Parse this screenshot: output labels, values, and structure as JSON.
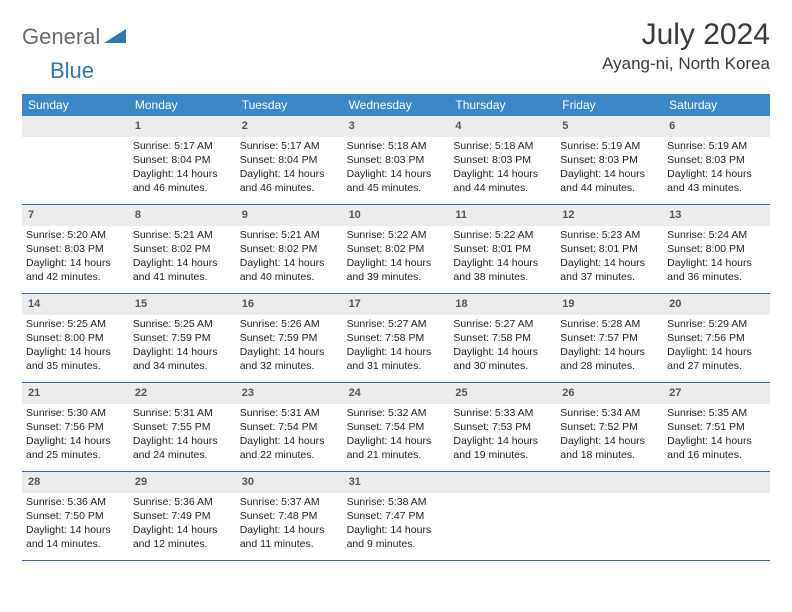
{
  "brand": {
    "general": "General",
    "blue": "Blue"
  },
  "title": {
    "month_year": "July 2024",
    "location": "Ayang-ni, North Korea"
  },
  "colors": {
    "header_bg": "#3b87c8",
    "header_text": "#ffffff",
    "date_bg": "#ececec",
    "date_text": "#555555",
    "body_text": "#222222",
    "rule": "#3b6fa0",
    "logo_gray": "#6a6a6a",
    "logo_blue": "#2e77b3"
  },
  "day_names": [
    "Sunday",
    "Monday",
    "Tuesday",
    "Wednesday",
    "Thursday",
    "Friday",
    "Saturday"
  ],
  "weeks": [
    [
      {
        "date": "",
        "lines": []
      },
      {
        "date": "1",
        "lines": [
          "Sunrise: 5:17 AM",
          "Sunset: 8:04 PM",
          "Daylight: 14 hours and 46 minutes."
        ]
      },
      {
        "date": "2",
        "lines": [
          "Sunrise: 5:17 AM",
          "Sunset: 8:04 PM",
          "Daylight: 14 hours and 46 minutes."
        ]
      },
      {
        "date": "3",
        "lines": [
          "Sunrise: 5:18 AM",
          "Sunset: 8:03 PM",
          "Daylight: 14 hours and 45 minutes."
        ]
      },
      {
        "date": "4",
        "lines": [
          "Sunrise: 5:18 AM",
          "Sunset: 8:03 PM",
          "Daylight: 14 hours and 44 minutes."
        ]
      },
      {
        "date": "5",
        "lines": [
          "Sunrise: 5:19 AM",
          "Sunset: 8:03 PM",
          "Daylight: 14 hours and 44 minutes."
        ]
      },
      {
        "date": "6",
        "lines": [
          "Sunrise: 5:19 AM",
          "Sunset: 8:03 PM",
          "Daylight: 14 hours and 43 minutes."
        ]
      }
    ],
    [
      {
        "date": "7",
        "lines": [
          "Sunrise: 5:20 AM",
          "Sunset: 8:03 PM",
          "Daylight: 14 hours and 42 minutes."
        ]
      },
      {
        "date": "8",
        "lines": [
          "Sunrise: 5:21 AM",
          "Sunset: 8:02 PM",
          "Daylight: 14 hours and 41 minutes."
        ]
      },
      {
        "date": "9",
        "lines": [
          "Sunrise: 5:21 AM",
          "Sunset: 8:02 PM",
          "Daylight: 14 hours and 40 minutes."
        ]
      },
      {
        "date": "10",
        "lines": [
          "Sunrise: 5:22 AM",
          "Sunset: 8:02 PM",
          "Daylight: 14 hours and 39 minutes."
        ]
      },
      {
        "date": "11",
        "lines": [
          "Sunrise: 5:22 AM",
          "Sunset: 8:01 PM",
          "Daylight: 14 hours and 38 minutes."
        ]
      },
      {
        "date": "12",
        "lines": [
          "Sunrise: 5:23 AM",
          "Sunset: 8:01 PM",
          "Daylight: 14 hours and 37 minutes."
        ]
      },
      {
        "date": "13",
        "lines": [
          "Sunrise: 5:24 AM",
          "Sunset: 8:00 PM",
          "Daylight: 14 hours and 36 minutes."
        ]
      }
    ],
    [
      {
        "date": "14",
        "lines": [
          "Sunrise: 5:25 AM",
          "Sunset: 8:00 PM",
          "Daylight: 14 hours and 35 minutes."
        ]
      },
      {
        "date": "15",
        "lines": [
          "Sunrise: 5:25 AM",
          "Sunset: 7:59 PM",
          "Daylight: 14 hours and 34 minutes."
        ]
      },
      {
        "date": "16",
        "lines": [
          "Sunrise: 5:26 AM",
          "Sunset: 7:59 PM",
          "Daylight: 14 hours and 32 minutes."
        ]
      },
      {
        "date": "17",
        "lines": [
          "Sunrise: 5:27 AM",
          "Sunset: 7:58 PM",
          "Daylight: 14 hours and 31 minutes."
        ]
      },
      {
        "date": "18",
        "lines": [
          "Sunrise: 5:27 AM",
          "Sunset: 7:58 PM",
          "Daylight: 14 hours and 30 minutes."
        ]
      },
      {
        "date": "19",
        "lines": [
          "Sunrise: 5:28 AM",
          "Sunset: 7:57 PM",
          "Daylight: 14 hours and 28 minutes."
        ]
      },
      {
        "date": "20",
        "lines": [
          "Sunrise: 5:29 AM",
          "Sunset: 7:56 PM",
          "Daylight: 14 hours and 27 minutes."
        ]
      }
    ],
    [
      {
        "date": "21",
        "lines": [
          "Sunrise: 5:30 AM",
          "Sunset: 7:56 PM",
          "Daylight: 14 hours and 25 minutes."
        ]
      },
      {
        "date": "22",
        "lines": [
          "Sunrise: 5:31 AM",
          "Sunset: 7:55 PM",
          "Daylight: 14 hours and 24 minutes."
        ]
      },
      {
        "date": "23",
        "lines": [
          "Sunrise: 5:31 AM",
          "Sunset: 7:54 PM",
          "Daylight: 14 hours and 22 minutes."
        ]
      },
      {
        "date": "24",
        "lines": [
          "Sunrise: 5:32 AM",
          "Sunset: 7:54 PM",
          "Daylight: 14 hours and 21 minutes."
        ]
      },
      {
        "date": "25",
        "lines": [
          "Sunrise: 5:33 AM",
          "Sunset: 7:53 PM",
          "Daylight: 14 hours and 19 minutes."
        ]
      },
      {
        "date": "26",
        "lines": [
          "Sunrise: 5:34 AM",
          "Sunset: 7:52 PM",
          "Daylight: 14 hours and 18 minutes."
        ]
      },
      {
        "date": "27",
        "lines": [
          "Sunrise: 5:35 AM",
          "Sunset: 7:51 PM",
          "Daylight: 14 hours and 16 minutes."
        ]
      }
    ],
    [
      {
        "date": "28",
        "lines": [
          "Sunrise: 5:36 AM",
          "Sunset: 7:50 PM",
          "Daylight: 14 hours and 14 minutes."
        ]
      },
      {
        "date": "29",
        "lines": [
          "Sunrise: 5:36 AM",
          "Sunset: 7:49 PM",
          "Daylight: 14 hours and 12 minutes."
        ]
      },
      {
        "date": "30",
        "lines": [
          "Sunrise: 5:37 AM",
          "Sunset: 7:48 PM",
          "Daylight: 14 hours and 11 minutes."
        ]
      },
      {
        "date": "31",
        "lines": [
          "Sunrise: 5:38 AM",
          "Sunset: 7:47 PM",
          "Daylight: 14 hours and 9 minutes."
        ]
      },
      {
        "date": "",
        "lines": []
      },
      {
        "date": "",
        "lines": []
      },
      {
        "date": "",
        "lines": []
      }
    ]
  ]
}
